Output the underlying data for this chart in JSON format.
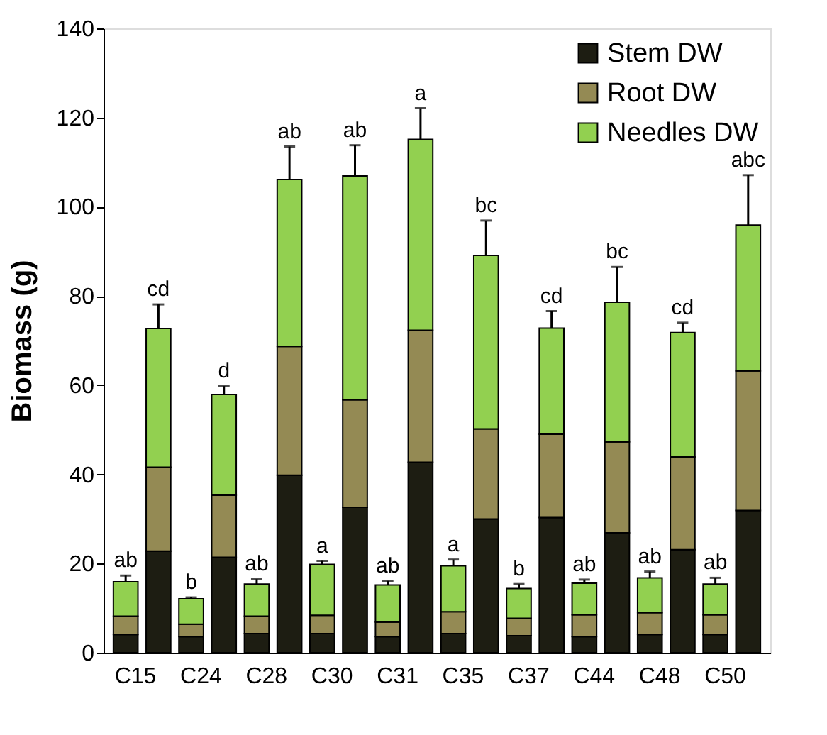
{
  "chart_data": {
    "type": "bar",
    "stacked": true,
    "ylabel": "Biomass (g)",
    "categories": [
      "C15",
      null,
      "C24",
      null,
      "C28",
      null,
      "C30",
      null,
      "C31",
      null,
      "C35",
      null,
      "C37",
      null,
      "C44",
      null,
      "C48",
      null,
      "C50",
      null
    ],
    "series": [
      {
        "name": "Stem DW",
        "color": "#1d1d12",
        "values": [
          4.1,
          22.8,
          3.6,
          21.4,
          4.3,
          39.8,
          4.3,
          32.6,
          3.6,
          42.7,
          4.3,
          30.0,
          3.8,
          30.3,
          3.6,
          26.9,
          4.1,
          23.1,
          4.1,
          31.9
        ]
      },
      {
        "name": "Root DW",
        "color": "#948a54",
        "values": [
          4.1,
          18.8,
          2.8,
          13.9,
          3.9,
          28.9,
          4.1,
          24.1,
          3.3,
          29.6,
          4.9,
          20.2,
          3.9,
          18.7,
          4.9,
          20.4,
          4.9,
          20.8,
          4.4,
          31.3
        ]
      },
      {
        "name": "Needles DW",
        "color": "#92d050",
        "values": [
          7.7,
          31.1,
          5.7,
          22.6,
          7.2,
          37.4,
          11.4,
          50.2,
          8.3,
          42.8,
          10.3,
          38.9,
          6.7,
          23.8,
          7.1,
          31.3,
          7.8,
          27.9,
          6.9,
          32.7
        ],
        "errors": [
          1.4,
          5.4,
          0.3,
          1.9,
          1.1,
          7.4,
          0.8,
          6.9,
          0.9,
          7.0,
          1.4,
          7.8,
          1.0,
          3.8,
          0.8,
          7.9,
          1.4,
          2.2,
          1.4,
          11.2
        ],
        "value_labels": [
          "ab",
          "cd",
          "b",
          "d",
          "ab",
          "ab",
          "a",
          "ab",
          "ab",
          "a",
          "a",
          "bc",
          "b",
          "cd",
          "ab",
          "bc",
          "ab",
          "cd",
          "ab",
          "abc"
        ]
      }
    ],
    "ylim": [
      0,
      140
    ],
    "yticks": [
      0,
      20,
      40,
      60,
      80,
      100,
      120,
      140
    ],
    "grid": false,
    "legend": "top right"
  }
}
